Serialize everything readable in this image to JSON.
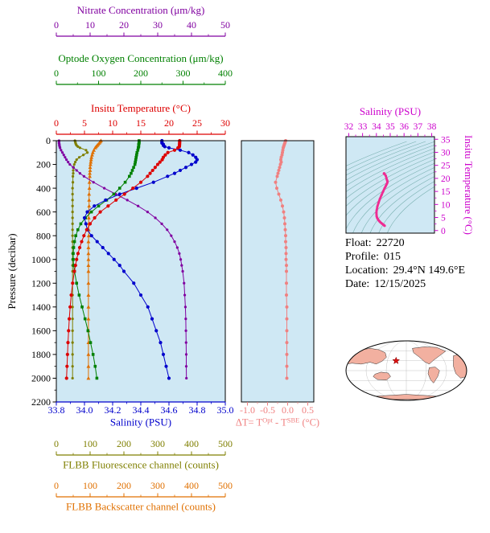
{
  "colors": {
    "plot_bg": "#cfe8f4",
    "frame": "#000000"
  },
  "float_info": {
    "lines": [
      {
        "label": "Float:",
        "value": "22720"
      },
      {
        "label": "Profile:",
        "value": "015"
      },
      {
        "label": "Location:",
        "value": "29.4°N 149.6°E"
      },
      {
        "label": "Date:",
        "value": "12/15/2025"
      }
    ]
  },
  "map": {
    "land_color": "#f2b0a0",
    "ocean_color": "#ffffff",
    "star_color": "#dd1111",
    "location_u": -0.17,
    "location_v": 0.33
  },
  "chart_data": [
    {
      "id": "profiles",
      "type": "line",
      "y_axis": {
        "label": "Pressure (decibar)",
        "min": 0,
        "max": 2200,
        "ticks": [
          "0",
          "200",
          "400",
          "600",
          "800",
          "1000",
          "1200",
          "1400",
          "1600",
          "1800",
          "2000",
          "2200"
        ]
      },
      "x_axes": [
        {
          "id": "nitrate",
          "label": "Nitrate Concentration (μm/kg)",
          "color": "#8000a0",
          "min": 0,
          "max": 50,
          "ticks": [
            "0",
            "10",
            "20",
            "30",
            "40",
            "50"
          ]
        },
        {
          "id": "oxygen",
          "label": "Optode Oxygen Concentration (μm/kg)",
          "color": "#008000",
          "min": 0,
          "max": 400,
          "ticks": [
            "0",
            "100",
            "200",
            "300",
            "400"
          ]
        },
        {
          "id": "temperature",
          "label": "Insitu Temperature (°C)",
          "color": "#dd0000",
          "min": 0,
          "max": 30,
          "ticks": [
            "0",
            "5",
            "10",
            "15",
            "20",
            "25",
            "30"
          ]
        },
        {
          "id": "salinity",
          "label": "Salinity (PSU)",
          "color": "#0000cc",
          "min": 33.8,
          "max": 35.0,
          "ticks": [
            "33.8",
            "34.0",
            "34.2",
            "34.4",
            "34.6",
            "34.8",
            "35.0"
          ]
        },
        {
          "id": "fluorescence",
          "label": "FLBB Fluorescence channel (counts)",
          "color": "#7f7f00",
          "min": 0,
          "max": 500,
          "ticks": [
            "0",
            "100",
            "200",
            "300",
            "400",
            "500"
          ]
        },
        {
          "id": "backscatter",
          "label": "FLBB Backscatter channel (counts)",
          "color": "#e07000",
          "min": 0,
          "max": 500,
          "ticks": [
            "0",
            "100",
            "200",
            "300",
            "400",
            "500"
          ]
        }
      ],
      "pressure": [
        0,
        10,
        20,
        30,
        40,
        50,
        60,
        80,
        100,
        120,
        140,
        160,
        180,
        200,
        225,
        250,
        275,
        300,
        350,
        400,
        450,
        500,
        550,
        600,
        650,
        700,
        750,
        800,
        850,
        900,
        950,
        1000,
        1050,
        1100,
        1200,
        1300,
        1400,
        1500,
        1600,
        1700,
        1800,
        1900,
        2000
      ],
      "series": [
        {
          "name": "backscatter",
          "axis": "backscatter",
          "color": "#e07000",
          "marker": "triangle",
          "values": [
            132,
            130,
            127,
            124,
            121,
            118,
            115,
            111,
            108,
            106,
            104,
            103,
            102,
            101,
            100,
            100,
            99,
            99,
            98,
            98,
            97,
            97,
            97,
            96,
            96,
            96,
            96,
            96,
            95,
            95,
            95,
            95,
            95,
            95,
            95,
            95,
            95,
            95,
            95,
            95,
            95,
            95,
            95
          ]
        },
        {
          "name": "fluorescence",
          "axis": "fluorescence",
          "color": "#7f7f00",
          "marker": "dot",
          "values": [
            55,
            56,
            57,
            58,
            60,
            64,
            70,
            88,
            92,
            80,
            68,
            60,
            56,
            53,
            51,
            50,
            50,
            49,
            49,
            48,
            48,
            48,
            48,
            48,
            48,
            48,
            48,
            48,
            48,
            48,
            48,
            48,
            48,
            48,
            48,
            48,
            48,
            48,
            48,
            48,
            48,
            48,
            48
          ]
        },
        {
          "name": "nitrate",
          "axis": "nitrate",
          "color": "#8000a0",
          "marker": "dot",
          "values": [
            0.8,
            0.8,
            0.8,
            0.9,
            0.9,
            1.0,
            1.1,
            1.4,
            1.8,
            2.2,
            2.6,
            3.0,
            3.5,
            4.0,
            5.0,
            6.0,
            7.0,
            8.2,
            11.0,
            14.2,
            17.6,
            21.0,
            24.2,
            27.0,
            29.3,
            31.2,
            32.8,
            34.0,
            35.0,
            35.8,
            36.4,
            36.8,
            37.1,
            37.4,
            37.8,
            38.0,
            38.2,
            38.3,
            38.35,
            38.4,
            38.45,
            38.45,
            38.5
          ]
        },
        {
          "name": "oxygen",
          "axis": "oxygen",
          "color": "#008000",
          "marker": "square",
          "values": [
            196,
            196,
            196,
            195,
            195,
            195,
            194,
            193,
            191,
            190,
            189,
            188,
            187,
            186,
            183,
            180,
            177,
            173,
            163,
            150,
            136,
            119,
            100,
            83,
            69,
            58,
            51,
            46,
            43,
            41,
            40,
            40,
            41,
            43,
            48,
            54,
            61,
            68,
            75,
            81,
            87,
            92,
            96
          ]
        },
        {
          "name": "salinity",
          "axis": "salinity",
          "color": "#0000cc",
          "marker": "circle",
          "values": [
            34.55,
            34.55,
            34.55,
            34.56,
            34.56,
            34.57,
            34.6,
            34.68,
            34.74,
            34.77,
            34.79,
            34.8,
            34.79,
            34.76,
            34.72,
            34.68,
            34.64,
            34.59,
            34.49,
            34.37,
            34.25,
            34.15,
            34.07,
            34.02,
            34.0,
            34.01,
            34.02,
            34.05,
            34.09,
            34.13,
            34.17,
            34.21,
            34.25,
            34.28,
            34.35,
            34.4,
            34.45,
            34.48,
            34.51,
            34.54,
            34.56,
            34.58,
            34.6
          ]
        },
        {
          "name": "temperature",
          "axis": "temperature",
          "color": "#dd0000",
          "marker": "circle",
          "values": [
            21.9,
            21.9,
            21.89,
            21.88,
            21.87,
            21.85,
            21.6,
            21.0,
            19.8,
            19.35,
            19.0,
            18.8,
            18.4,
            18.0,
            17.55,
            17.1,
            16.65,
            16.2,
            15.0,
            13.6,
            12.1,
            10.6,
            9.2,
            7.8,
            6.8,
            6.0,
            5.4,
            4.9,
            4.5,
            4.15,
            3.85,
            3.6,
            3.4,
            3.2,
            2.9,
            2.65,
            2.45,
            2.3,
            2.18,
            2.07,
            1.98,
            1.9,
            1.82
          ]
        }
      ]
    },
    {
      "id": "delta_t",
      "type": "line",
      "uses_pressure_of": "profiles",
      "x_axis": {
        "label_plain": "ΔT= TOpt - TSBE (°C)",
        "label_parts": [
          {
            "t": "ΔT= T",
            "sup": false
          },
          {
            "t": "Opt",
            "sup": true
          },
          {
            "t": " - T",
            "sup": false
          },
          {
            "t": "SBE",
            "sup": true
          },
          {
            "t": " (°C)",
            "sup": false
          }
        ],
        "color": "#f08080",
        "min": -1.15,
        "max": 0.65,
        "ticks": [
          "-1.0",
          "-0.5",
          "0.0",
          "0.5"
        ]
      },
      "series": [
        {
          "name": "delta_t",
          "color": "#f08080",
          "marker": "circle",
          "values": [
            -0.05,
            -0.06,
            -0.07,
            -0.08,
            -0.09,
            -0.1,
            -0.11,
            -0.12,
            -0.13,
            -0.14,
            -0.16,
            -0.17,
            -0.16,
            -0.18,
            -0.2,
            -0.22,
            -0.24,
            -0.26,
            -0.3,
            -0.27,
            -0.22,
            -0.17,
            -0.13,
            -0.1,
            -0.08,
            -0.07,
            -0.06,
            -0.05,
            -0.05,
            -0.04,
            -0.04,
            -0.04,
            -0.03,
            -0.03,
            -0.03,
            -0.03,
            -0.02,
            -0.02,
            -0.02,
            -0.02,
            -0.02,
            -0.02,
            -0.02
          ]
        }
      ]
    },
    {
      "id": "ts_diagram",
      "type": "line",
      "x_axis": {
        "label": "Salinity (PSU)",
        "color": "#cc00cc",
        "min": 31.8,
        "max": 38.2,
        "ticks": [
          "32",
          "33",
          "34",
          "35",
          "36",
          "37",
          "38"
        ]
      },
      "y_axis": {
        "label": "Insitu Temperature (°C)",
        "color": "#cc00cc",
        "min": -1,
        "max": 36,
        "ticks": [
          "0",
          "5",
          "10",
          "15",
          "20",
          "25",
          "30",
          "35"
        ]
      },
      "curve_color": "#ee2d93",
      "contour_color": "#79b0b0",
      "isopycnals": [
        21,
        21.5,
        22,
        22.5,
        23,
        23.5,
        24,
        24.5,
        25,
        25.5,
        26,
        26.5,
        27,
        27.5,
        28
      ],
      "series_note": "curve pairs salinity (x) with temperature (y) from the profiles chart"
    }
  ]
}
